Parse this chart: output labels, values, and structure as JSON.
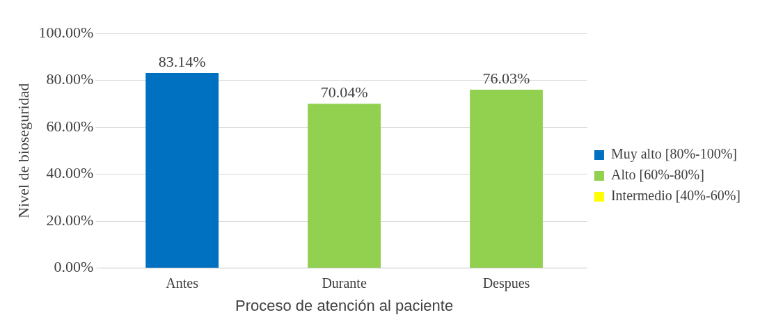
{
  "chart_data": {
    "type": "bar",
    "xlabel": "Proceso de atención al paciente",
    "ylabel": "Nivel de bioseguridad",
    "categories": [
      "Antes",
      "Durante",
      "Despues"
    ],
    "series": [
      {
        "name": "Muy alto [80%-100%]",
        "color": "#0070c0",
        "values": [
          83.14,
          null,
          null
        ],
        "value_labels": [
          "83.14%",
          null,
          null
        ]
      },
      {
        "name": "Alto [60%-80%]",
        "color": "#92d050",
        "values": [
          null,
          70.04,
          76.03
        ],
        "value_labels": [
          null,
          "70.04%",
          "76.03%"
        ]
      },
      {
        "name": "Intermedio [40%-60%]",
        "color": "#ffff00",
        "values": [
          null,
          null,
          null
        ]
      }
    ],
    "ylim": [
      0,
      100
    ],
    "yticks": [
      {
        "value": 0,
        "label": "0.00%"
      },
      {
        "value": 20,
        "label": "20.00%"
      },
      {
        "value": 40,
        "label": "40.00%"
      },
      {
        "value": 60,
        "label": "60.00%"
      },
      {
        "value": 80,
        "label": "80.00%"
      },
      {
        "value": 100,
        "label": "100.00%"
      }
    ],
    "grid": "y",
    "legend": "right"
  }
}
